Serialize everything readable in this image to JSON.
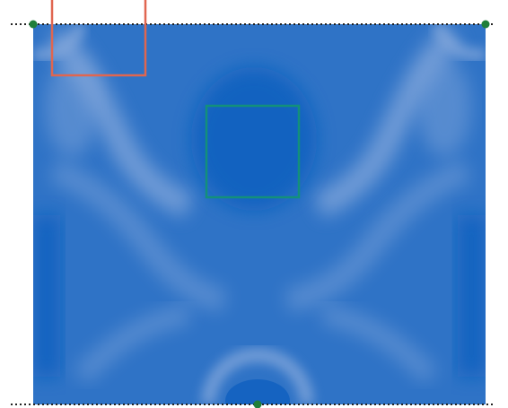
{
  "colors": {
    "background": "#ffffff",
    "field_dark": "#1160bf",
    "field_mid": "#2f73c6",
    "field_light": "#86a9dc",
    "selection_box_red": "#e06650",
    "selection_box_teal": "#13907a",
    "boundary_dots": "#222222",
    "node_marker": "#1f7f3a"
  },
  "elements": {
    "field_map": "heatmap-field",
    "top_boundary": "dotted-boundary-line",
    "bottom_boundary": "dotted-boundary-line",
    "red_box": "selection-rectangle",
    "teal_box": "selection-rectangle",
    "markers": [
      "node-marker",
      "node-marker",
      "node-marker"
    ]
  }
}
